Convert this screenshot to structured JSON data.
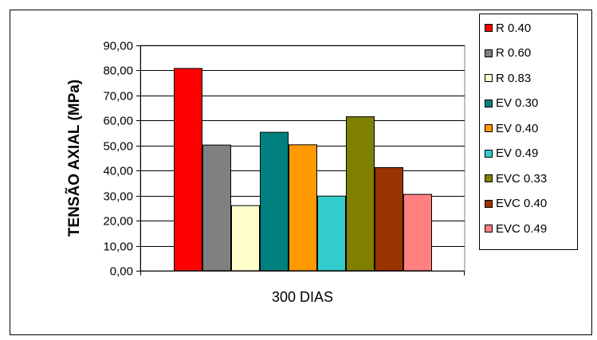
{
  "chart_data": {
    "type": "bar",
    "categories": [
      "300 DIAS"
    ],
    "ylabel": "TENSÃO AXIAL (MPa)",
    "ylim": [
      0,
      90
    ],
    "yticks": [
      "0,00",
      "10,00",
      "20,00",
      "30,00",
      "40,00",
      "50,00",
      "60,00",
      "70,00",
      "80,00",
      "90,00"
    ],
    "grid": true,
    "legend_position": "right",
    "series": [
      {
        "name": "R 0.40",
        "values": [
          80.8
        ],
        "color": "#ff0000"
      },
      {
        "name": "R 0.60",
        "values": [
          50.2
        ],
        "color": "#808080"
      },
      {
        "name": "R 0.83",
        "values": [
          26.0
        ],
        "color": "#ffffcc"
      },
      {
        "name": "EV 0.30",
        "values": [
          55.3
        ],
        "color": "#008080"
      },
      {
        "name": "EV 0.40",
        "values": [
          50.3
        ],
        "color": "#ff9900"
      },
      {
        "name": "EV 0.49",
        "values": [
          29.8
        ],
        "color": "#33cccc"
      },
      {
        "name": "EVC 0.33",
        "values": [
          61.5
        ],
        "color": "#808000"
      },
      {
        "name": "EVC 0.40",
        "values": [
          41.2
        ],
        "color": "#993300"
      },
      {
        "name": "EVC 0.49",
        "values": [
          30.5
        ],
        "color": "#ff8080"
      }
    ]
  }
}
